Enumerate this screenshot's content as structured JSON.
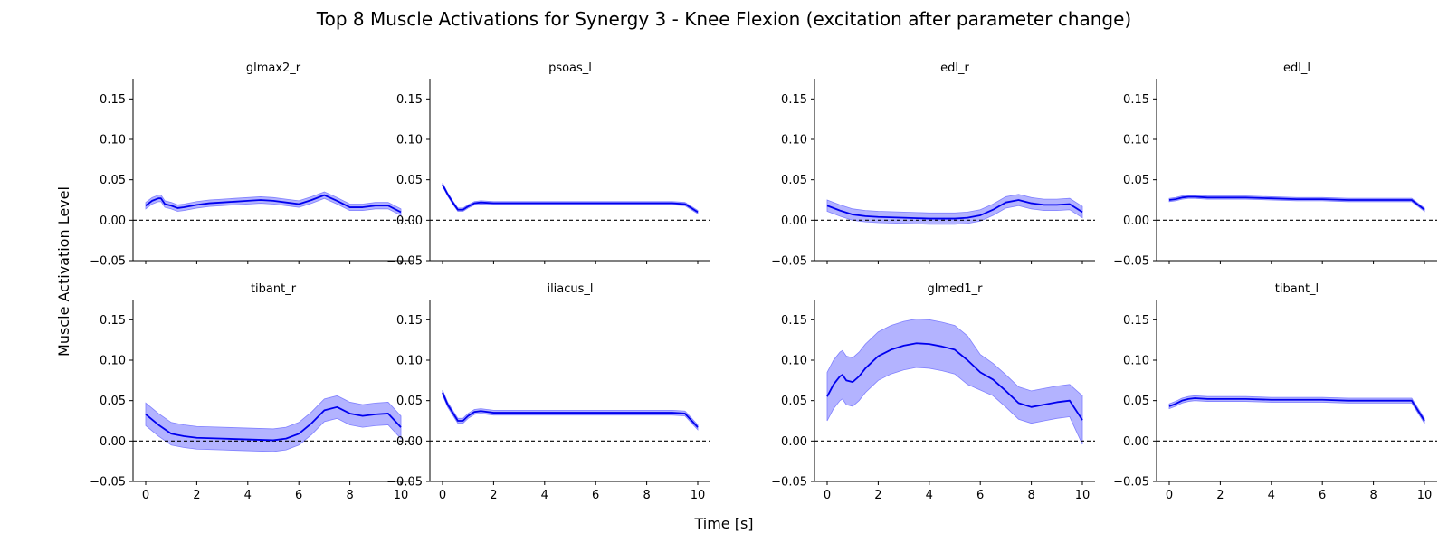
{
  "figure": {
    "title": "Top 8 Muscle Activations for Synergy 3 - Knee Flexion (excitation after parameter change)",
    "xlabel": "Time [s]",
    "ylabel": "Muscle Activation Level"
  },
  "style": {
    "line_color": "#0000ee",
    "band_color": "#8080ff",
    "reference_color": "#000000"
  },
  "chart_data": [
    {
      "type": "line",
      "title": "glmax2_r",
      "xlim": [
        0,
        10
      ],
      "ylim": [
        -0.05,
        0.175
      ],
      "xticks": [
        0,
        2,
        4,
        6,
        8,
        10
      ],
      "yticks": [
        -0.05,
        0.0,
        0.05,
        0.1,
        0.15
      ],
      "ytick_labels": [
        "−0.05",
        "0.00",
        "0.05",
        "0.10",
        "0.15"
      ],
      "xtick_labels_visible": false,
      "reference_line": 0,
      "x": [
        0,
        0.25,
        0.5,
        0.6,
        0.75,
        1,
        1.25,
        1.5,
        2,
        2.5,
        3,
        3.5,
        4,
        4.5,
        5,
        5.5,
        6,
        6.5,
        7,
        7.5,
        8,
        8.5,
        9,
        9.5,
        10
      ],
      "y": [
        0.018,
        0.024,
        0.027,
        0.027,
        0.02,
        0.018,
        0.015,
        0.016,
        0.019,
        0.021,
        0.022,
        0.023,
        0.024,
        0.025,
        0.024,
        0.022,
        0.02,
        0.025,
        0.031,
        0.024,
        0.016,
        0.016,
        0.018,
        0.018,
        0.01
      ],
      "band": [
        0.004,
        0.004,
        0.004,
        0.004,
        0.004,
        0.004,
        0.004,
        0.004,
        0.004,
        0.004,
        0.004,
        0.004,
        0.004,
        0.004,
        0.004,
        0.004,
        0.004,
        0.004,
        0.004,
        0.004,
        0.004,
        0.004,
        0.004,
        0.004,
        0.004
      ]
    },
    {
      "type": "line",
      "title": "psoas_l",
      "xlim": [
        0,
        10
      ],
      "ylim": [
        -0.05,
        0.175
      ],
      "xticks": [
        0,
        2,
        4,
        6,
        8,
        10
      ],
      "yticks": [
        -0.05,
        0.0,
        0.05,
        0.1,
        0.15
      ],
      "ytick_labels": [
        "−0.05",
        "0.00",
        "0.05",
        "0.10",
        "0.15"
      ],
      "xtick_labels_visible": false,
      "reference_line": 0,
      "x": [
        0,
        0.2,
        0.4,
        0.6,
        0.8,
        1,
        1.25,
        1.5,
        2,
        3,
        4,
        5,
        6,
        7,
        8,
        9,
        9.5,
        10
      ],
      "y": [
        0.044,
        0.032,
        0.022,
        0.013,
        0.013,
        0.017,
        0.021,
        0.022,
        0.021,
        0.021,
        0.021,
        0.021,
        0.021,
        0.021,
        0.021,
        0.021,
        0.02,
        0.01
      ],
      "band": [
        0.002,
        0.002,
        0.002,
        0.002,
        0.002,
        0.002,
        0.002,
        0.002,
        0.002,
        0.002,
        0.002,
        0.002,
        0.002,
        0.002,
        0.002,
        0.002,
        0.002,
        0.002
      ]
    },
    {
      "type": "line",
      "title": "edl_r",
      "xlim": [
        0,
        10
      ],
      "ylim": [
        -0.05,
        0.175
      ],
      "xticks": [
        0,
        2,
        4,
        6,
        8,
        10
      ],
      "yticks": [
        -0.05,
        0.0,
        0.05,
        0.1,
        0.15
      ],
      "ytick_labels": [
        "−0.05",
        "0.00",
        "0.05",
        "0.10",
        "0.15"
      ],
      "xtick_labels_visible": false,
      "reference_line": 0,
      "x": [
        0,
        0.5,
        1,
        1.5,
        2,
        3,
        4,
        5,
        5.5,
        6,
        6.5,
        7,
        7.5,
        8,
        8.5,
        9,
        9.5,
        10
      ],
      "y": [
        0.018,
        0.012,
        0.007,
        0.005,
        0.004,
        0.003,
        0.002,
        0.002,
        0.003,
        0.006,
        0.013,
        0.022,
        0.025,
        0.021,
        0.019,
        0.019,
        0.02,
        0.01
      ],
      "band": [
        0.007,
        0.007,
        0.007,
        0.007,
        0.007,
        0.007,
        0.007,
        0.007,
        0.007,
        0.007,
        0.007,
        0.007,
        0.007,
        0.007,
        0.007,
        0.007,
        0.007,
        0.007
      ]
    },
    {
      "type": "line",
      "title": "edl_l",
      "xlim": [
        0,
        10
      ],
      "ylim": [
        -0.05,
        0.175
      ],
      "xticks": [
        0,
        2,
        4,
        6,
        8,
        10
      ],
      "yticks": [
        -0.05,
        0.0,
        0.05,
        0.1,
        0.15
      ],
      "ytick_labels": [
        "−0.05",
        "0.00",
        "0.05",
        "0.10",
        "0.15"
      ],
      "xtick_labels_visible": false,
      "reference_line": 0,
      "x": [
        0,
        0.25,
        0.5,
        0.75,
        1,
        1.5,
        2,
        3,
        4,
        5,
        6,
        7,
        8,
        9,
        9.5,
        10
      ],
      "y": [
        0.025,
        0.026,
        0.028,
        0.029,
        0.029,
        0.028,
        0.028,
        0.028,
        0.027,
        0.026,
        0.026,
        0.025,
        0.025,
        0.025,
        0.025,
        0.013
      ],
      "band": [
        0.002,
        0.002,
        0.002,
        0.002,
        0.002,
        0.002,
        0.002,
        0.002,
        0.002,
        0.002,
        0.002,
        0.002,
        0.002,
        0.002,
        0.002,
        0.002
      ]
    },
    {
      "type": "line",
      "title": "tibant_r",
      "xlim": [
        0,
        10
      ],
      "ylim": [
        -0.05,
        0.175
      ],
      "xticks": [
        0,
        2,
        4,
        6,
        8,
        10
      ],
      "xtick_labels": [
        "0",
        "2",
        "4",
        "6",
        "8",
        "10"
      ],
      "yticks": [
        -0.05,
        0.0,
        0.05,
        0.1,
        0.15
      ],
      "ytick_labels": [
        "−0.05",
        "0.00",
        "0.05",
        "0.10",
        "0.15"
      ],
      "reference_line": 0,
      "x": [
        0,
        0.5,
        1,
        1.5,
        2,
        3,
        4,
        5,
        5.5,
        6,
        6.5,
        7,
        7.5,
        8,
        8.5,
        9,
        9.5,
        10
      ],
      "y": [
        0.033,
        0.02,
        0.009,
        0.006,
        0.004,
        0.003,
        0.002,
        0.001,
        0.003,
        0.009,
        0.022,
        0.038,
        0.042,
        0.034,
        0.031,
        0.033,
        0.034,
        0.017
      ],
      "band": [
        0.014,
        0.014,
        0.014,
        0.014,
        0.014,
        0.014,
        0.014,
        0.014,
        0.014,
        0.014,
        0.014,
        0.014,
        0.014,
        0.014,
        0.014,
        0.014,
        0.014,
        0.014
      ]
    },
    {
      "type": "line",
      "title": "iliacus_l",
      "xlim": [
        0,
        10
      ],
      "ylim": [
        -0.05,
        0.175
      ],
      "xticks": [
        0,
        2,
        4,
        6,
        8,
        10
      ],
      "xtick_labels": [
        "0",
        "2",
        "4",
        "6",
        "8",
        "10"
      ],
      "yticks": [
        -0.05,
        0.0,
        0.05,
        0.1,
        0.15
      ],
      "ytick_labels": [
        "−0.05",
        "0.00",
        "0.05",
        "0.10",
        "0.15"
      ],
      "reference_line": 0,
      "x": [
        0,
        0.2,
        0.4,
        0.6,
        0.8,
        1,
        1.25,
        1.5,
        2,
        3,
        4,
        5,
        6,
        7,
        8,
        9,
        9.5,
        10
      ],
      "y": [
        0.06,
        0.045,
        0.035,
        0.025,
        0.025,
        0.031,
        0.036,
        0.037,
        0.035,
        0.035,
        0.035,
        0.035,
        0.035,
        0.035,
        0.035,
        0.035,
        0.034,
        0.017
      ],
      "band": [
        0.003,
        0.003,
        0.003,
        0.003,
        0.003,
        0.003,
        0.003,
        0.003,
        0.003,
        0.003,
        0.003,
        0.003,
        0.003,
        0.003,
        0.003,
        0.003,
        0.003,
        0.003
      ]
    },
    {
      "type": "line",
      "title": "glmed1_r",
      "xlim": [
        0,
        10
      ],
      "ylim": [
        -0.05,
        0.175
      ],
      "xticks": [
        0,
        2,
        4,
        6,
        8,
        10
      ],
      "xtick_labels": [
        "0",
        "2",
        "4",
        "6",
        "8",
        "10"
      ],
      "yticks": [
        -0.05,
        0.0,
        0.05,
        0.1,
        0.15
      ],
      "ytick_labels": [
        "−0.05",
        "0.00",
        "0.05",
        "0.10",
        "0.15"
      ],
      "reference_line": 0,
      "x": [
        0,
        0.25,
        0.5,
        0.6,
        0.75,
        1,
        1.25,
        1.5,
        2,
        2.5,
        3,
        3.5,
        4,
        4.5,
        5,
        5.5,
        6,
        6.5,
        7,
        7.5,
        8,
        8.5,
        9,
        9.5,
        10
      ],
      "y": [
        0.055,
        0.07,
        0.08,
        0.082,
        0.075,
        0.073,
        0.08,
        0.09,
        0.105,
        0.113,
        0.118,
        0.121,
        0.12,
        0.117,
        0.113,
        0.1,
        0.085,
        0.076,
        0.062,
        0.047,
        0.042,
        0.045,
        0.048,
        0.05,
        0.026
      ],
      "band": [
        0.03,
        0.03,
        0.03,
        0.03,
        0.03,
        0.03,
        0.03,
        0.03,
        0.03,
        0.03,
        0.03,
        0.03,
        0.03,
        0.03,
        0.03,
        0.03,
        0.022,
        0.02,
        0.02,
        0.02,
        0.02,
        0.02,
        0.02,
        0.02,
        0.03
      ]
    },
    {
      "type": "line",
      "title": "tibant_l",
      "xlim": [
        0,
        10
      ],
      "ylim": [
        -0.05,
        0.175
      ],
      "xticks": [
        0,
        2,
        4,
        6,
        8,
        10
      ],
      "xtick_labels": [
        "0",
        "2",
        "4",
        "6",
        "8",
        "10"
      ],
      "yticks": [
        -0.05,
        0.0,
        0.05,
        0.1,
        0.15
      ],
      "ytick_labels": [
        "−0.05",
        "0.00",
        "0.05",
        "0.10",
        "0.15"
      ],
      "reference_line": 0,
      "x": [
        0,
        0.25,
        0.5,
        0.75,
        1,
        1.5,
        2,
        3,
        4,
        5,
        6,
        7,
        8,
        9,
        9.5,
        10
      ],
      "y": [
        0.043,
        0.046,
        0.05,
        0.052,
        0.053,
        0.052,
        0.052,
        0.052,
        0.051,
        0.051,
        0.051,
        0.05,
        0.05,
        0.05,
        0.05,
        0.025
      ],
      "band": [
        0.003,
        0.003,
        0.003,
        0.003,
        0.003,
        0.003,
        0.003,
        0.003,
        0.003,
        0.003,
        0.003,
        0.003,
        0.003,
        0.003,
        0.003,
        0.003
      ]
    }
  ]
}
